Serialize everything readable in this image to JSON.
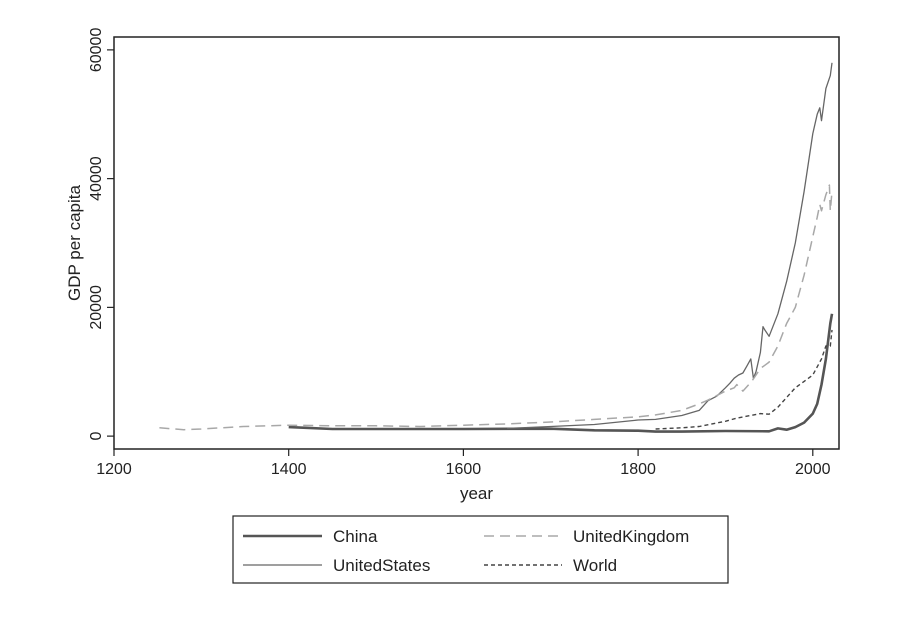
{
  "chart_data": {
    "type": "line",
    "title": "",
    "xlabel": "year",
    "ylabel": "GDP per capita",
    "xlim": [
      1200,
      2030
    ],
    "ylim": [
      -2000,
      62000
    ],
    "xticks": [
      1200,
      1400,
      1600,
      1800,
      2000
    ],
    "yticks": [
      0,
      20000,
      40000,
      60000
    ],
    "grid": false,
    "legend_position": "bottom",
    "series": [
      {
        "name": "China",
        "color": "#555555",
        "dash": "solid",
        "width": 2.6,
        "x": [
          1400,
          1450,
          1500,
          1600,
          1700,
          1750,
          1800,
          1820,
          1850,
          1900,
          1950,
          1960,
          1970,
          1980,
          1990,
          2000,
          2005,
          2010,
          2015,
          2020,
          2022
        ],
        "y": [
          1400,
          1100,
          1100,
          1100,
          1150,
          900,
          850,
          700,
          700,
          800,
          750,
          1200,
          1000,
          1400,
          2100,
          3500,
          5000,
          8000,
          12000,
          17500,
          19000
        ]
      },
      {
        "name": "UnitedStates",
        "color": "#666666",
        "dash": "solid",
        "width": 1.3,
        "x": [
          1650,
          1700,
          1750,
          1800,
          1820,
          1850,
          1870,
          1880,
          1890,
          1900,
          1905,
          1910,
          1915,
          1920,
          1925,
          1929,
          1932,
          1935,
          1940,
          1943,
          1945,
          1950,
          1960,
          1970,
          1980,
          1990,
          2000,
          2005,
          2008,
          2010,
          2015,
          2020,
          2022
        ],
        "y": [
          1200,
          1500,
          1800,
          2500,
          2600,
          3200,
          4000,
          5500,
          6200,
          7500,
          8200,
          9000,
          9500,
          9800,
          11000,
          12000,
          9000,
          10000,
          13000,
          17000,
          16500,
          15500,
          19000,
          24000,
          30000,
          38000,
          47000,
          50000,
          51000,
          49000,
          54000,
          56000,
          58000
        ]
      },
      {
        "name": "UnitedKingdom",
        "color": "#a8a8a8",
        "dash": "10,6",
        "width": 1.5,
        "x": [
          1252,
          1280,
          1300,
          1348,
          1400,
          1450,
          1500,
          1550,
          1600,
          1650,
          1700,
          1750,
          1800,
          1820,
          1850,
          1870,
          1880,
          1900,
          1910,
          1913,
          1920,
          1930,
          1940,
          1945,
          1950,
          1960,
          1970,
          1980,
          1990,
          2000,
          2005,
          2008,
          2010,
          2015,
          2019,
          2020,
          2022
        ],
        "y": [
          1300,
          1000,
          1100,
          1500,
          1700,
          1600,
          1600,
          1500,
          1700,
          1900,
          2200,
          2600,
          3000,
          3300,
          4000,
          5000,
          5600,
          7000,
          7500,
          8000,
          7000,
          8500,
          10500,
          11000,
          11500,
          14000,
          17500,
          20000,
          25000,
          31000,
          34000,
          36000,
          35000,
          37500,
          39000,
          35000,
          38000
        ]
      },
      {
        "name": "World",
        "color": "#444444",
        "dash": "4,3",
        "width": 1.4,
        "x": [
          1820,
          1850,
          1870,
          1900,
          1913,
          1940,
          1950,
          1960,
          1970,
          1980,
          1990,
          2000,
          2010,
          2015,
          2020,
          2022
        ],
        "y": [
          1100,
          1300,
          1500,
          2300,
          2800,
          3500,
          3400,
          4500,
          6000,
          7500,
          8500,
          9500,
          12000,
          14000,
          14000,
          16500
        ]
      }
    ]
  }
}
